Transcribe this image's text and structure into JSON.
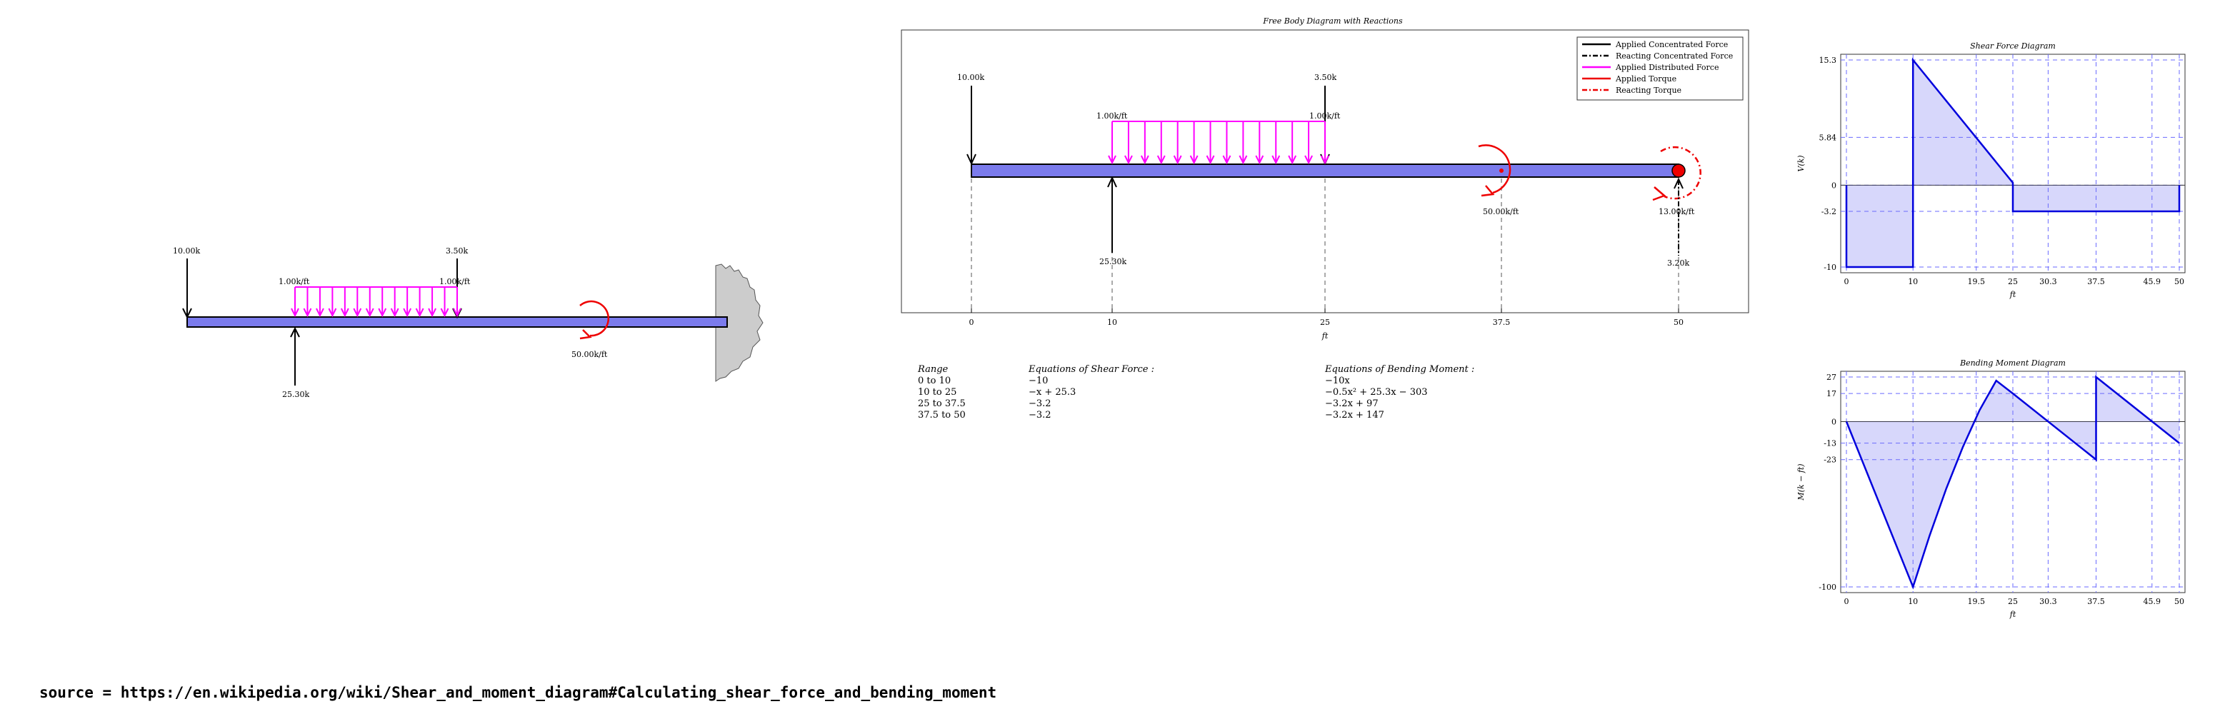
{
  "left_diagram": {
    "point_loads": [
      {
        "label": "10.00k"
      },
      {
        "label": "3.50k"
      }
    ],
    "dist_labels": [
      "1.00k/ft",
      "1.00k/ft"
    ],
    "reaction": "25.30k",
    "torque": "50.00k/ft"
  },
  "fbd": {
    "title": "Free Body Diagram with Reactions",
    "legend": [
      "Applied Concentrated Force",
      "Reacting Concentrated Force",
      "Applied Distributed Force",
      "Applied Torque",
      "Reacting Torque"
    ],
    "load_labels": {
      "p1": "10.00k",
      "p2": "3.50k",
      "d1": "1.00k/ft",
      "d2": "1.00k/ft",
      "r1": "25.30k",
      "t1": "50.00k/ft",
      "t2": "13.00k/ft",
      "r2": "3.20k"
    },
    "x_ticks": [
      "0",
      "10",
      "25",
      "37.5",
      "50"
    ],
    "x_label": "ft"
  },
  "equations": {
    "headers": [
      "Range",
      "Equations of Shear Force :",
      "Equations of Bending Moment :"
    ],
    "rows": [
      {
        "range": "0 to 10",
        "shear": "−10",
        "moment": "−10x"
      },
      {
        "range": "10 to 25",
        "shear": "−x + 25.3",
        "moment": "−0.5x² + 25.3x − 303"
      },
      {
        "range": "25 to 37.5",
        "shear": "−3.2",
        "moment": "−3.2x + 97"
      },
      {
        "range": "37.5 to 50",
        "shear": "−3.2",
        "moment": "−3.2x + 147"
      }
    ]
  },
  "chart_data": [
    {
      "type": "area",
      "title": "Shear Force Diagram",
      "xlabel": "ft",
      "ylabel": "V(k)",
      "xlim": [
        0,
        50
      ],
      "ylim": [
        -10,
        15.3
      ],
      "x_ticks": [
        "0",
        "10",
        "19.5",
        "25",
        "30.3",
        "37.5",
        "45.9",
        "50"
      ],
      "y_ticks": [
        "15.3",
        "5.84",
        "0",
        "-3.2",
        "-10"
      ],
      "x": [
        0,
        0,
        10,
        10,
        25,
        25,
        50,
        50
      ],
      "y": [
        0,
        -10,
        -10,
        15.3,
        0.3,
        -3.2,
        -3.2,
        0
      ]
    },
    {
      "type": "area",
      "title": "Bending Moment Diagram",
      "xlabel": "ft",
      "ylabel": "M(k − ft)",
      "xlim": [
        0,
        50
      ],
      "ylim": [
        -100,
        27
      ],
      "x_ticks": [
        "0",
        "10",
        "19.5",
        "25",
        "30.3",
        "37.5",
        "45.9",
        "50"
      ],
      "y_ticks": [
        "27",
        "17",
        "0",
        "-13",
        "-23",
        "-100"
      ],
      "x": [
        0,
        10,
        12.5,
        15,
        17.5,
        20,
        22.5,
        25,
        37.5,
        37.5,
        50
      ],
      "y": [
        0,
        -100,
        -68.9,
        -40.5,
        -15.25,
        6.9,
        24.8,
        17,
        -23,
        27,
        -13
      ]
    }
  ]
}
